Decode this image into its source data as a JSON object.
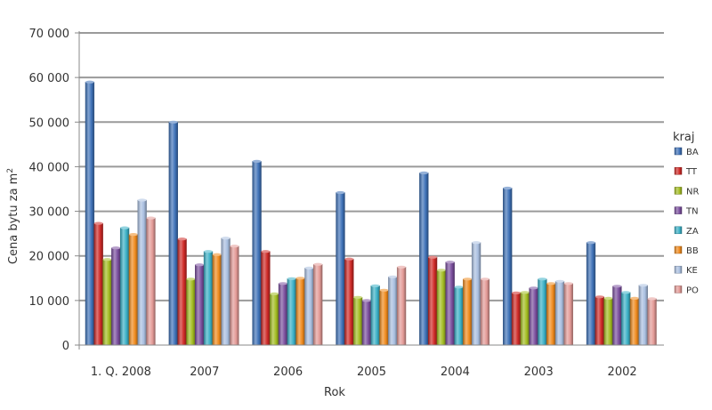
{
  "chart_data": {
    "type": "bar",
    "title": "",
    "xlabel": "Rok",
    "ylabel_prefix": "Cena bytu za m",
    "ylabel_sup": "2",
    "ylim": [
      0,
      70000
    ],
    "yticks": [
      0,
      10000,
      20000,
      30000,
      40000,
      50000,
      60000,
      70000
    ],
    "ytick_labels": [
      "0",
      "10 000",
      "20 000",
      "30 000",
      "40 000",
      "50 000",
      "60 000",
      "70 000"
    ],
    "grid": true,
    "legend_title": "kraj",
    "legend_position": "right",
    "categories": [
      "1. Q. 2008",
      "2007",
      "2006",
      "2005",
      "2004",
      "2003",
      "2002"
    ],
    "series": [
      {
        "name": "BA",
        "color": "#3f72b8",
        "values": [
          59000,
          50000,
          41200,
          34200,
          38600,
          35200,
          23000
        ]
      },
      {
        "name": "TT",
        "color": "#cf2a27",
        "values": [
          27300,
          23800,
          21000,
          19300,
          19700,
          11700,
          10800
        ]
      },
      {
        "name": "NR",
        "color": "#a3bd22",
        "values": [
          19200,
          14800,
          11500,
          10700,
          16800,
          11800,
          10500
        ]
      },
      {
        "name": "TN",
        "color": "#7b4f9e",
        "values": [
          21800,
          18000,
          13800,
          10000,
          18600,
          12800,
          13200
        ]
      },
      {
        "name": "ZA",
        "color": "#3bb0c6",
        "values": [
          26300,
          21000,
          14900,
          13300,
          13000,
          14800,
          11800
        ]
      },
      {
        "name": "BB",
        "color": "#ef8a1d",
        "values": [
          24800,
          20300,
          15000,
          12300,
          14800,
          13800,
          10500
        ]
      },
      {
        "name": "KE",
        "color": "#a9bfe0",
        "values": [
          32500,
          24000,
          17300,
          15300,
          23000,
          14300,
          13400
        ]
      },
      {
        "name": "PO",
        "color": "#e39a96",
        "values": [
          28500,
          22200,
          18100,
          17500,
          14800,
          13800,
          10400
        ]
      }
    ]
  }
}
